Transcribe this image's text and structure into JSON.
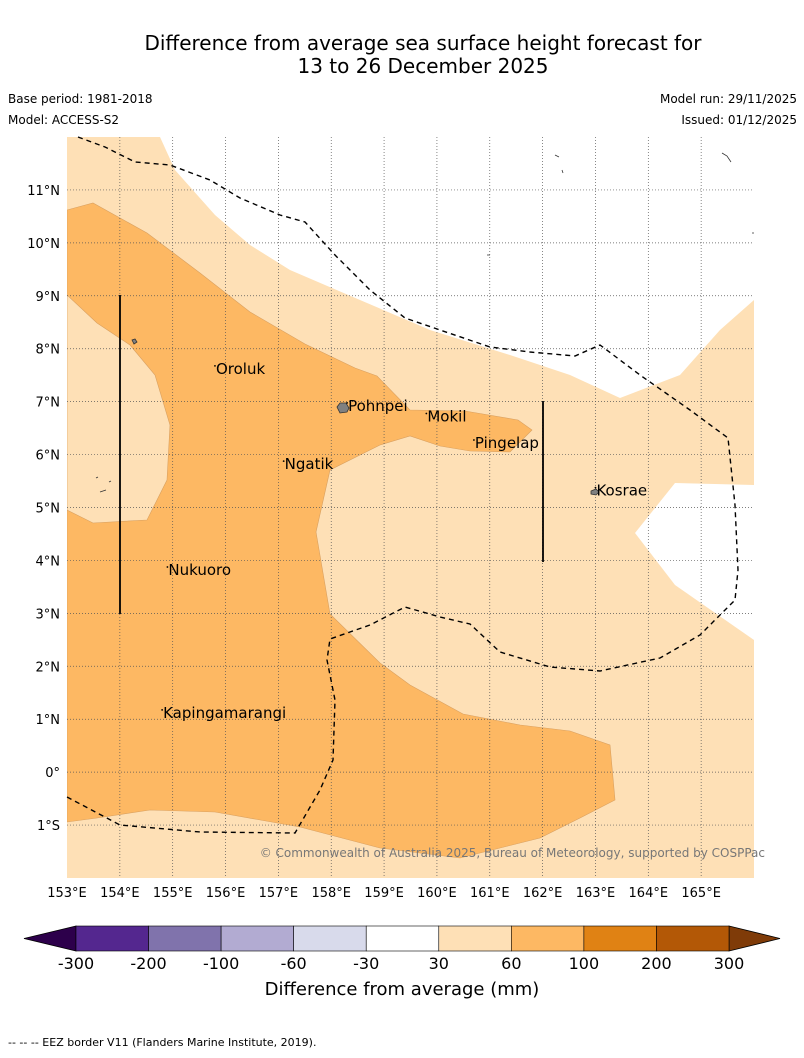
{
  "title": {
    "line1": "Difference from average sea surface height forecast for",
    "line2": "13 to 26 December 2025"
  },
  "meta": {
    "base_period": "Base period: 1981-2018",
    "model": "Model: ACCESS-S2",
    "model_run": "Model run: 29/11/2025",
    "issued": "Issued: 01/12/2025"
  },
  "map": {
    "lon_range": [
      153,
      166
    ],
    "lat_range": [
      -2,
      12
    ],
    "lon_labels": [
      "153°E",
      "154°E",
      "155°E",
      "156°E",
      "157°E",
      "158°E",
      "159°E",
      "160°E",
      "161°E",
      "162°E",
      "163°E",
      "164°E",
      "165°E"
    ],
    "lon_values": [
      153,
      154,
      155,
      156,
      157,
      158,
      159,
      160,
      161,
      162,
      163,
      164,
      165
    ],
    "lat_labels": [
      "1°S",
      "0°",
      "1°N",
      "2°N",
      "3°N",
      "4°N",
      "5°N",
      "6°N",
      "7°N",
      "8°N",
      "9°N",
      "10°N",
      "11°N"
    ],
    "lat_values": [
      -1,
      0,
      1,
      2,
      3,
      4,
      5,
      6,
      7,
      8,
      9,
      10,
      11
    ],
    "gridlines": true,
    "places": [
      {
        "name": "Oroluk",
        "lon": 155.8,
        "lat": 7.6
      },
      {
        "name": "Pohnpei",
        "lon": 158.3,
        "lat": 6.9
      },
      {
        "name": "Mokil",
        "lon": 159.8,
        "lat": 6.7
      },
      {
        "name": "Pingelap",
        "lon": 160.7,
        "lat": 6.2
      },
      {
        "name": "Ngatik",
        "lon": 157.1,
        "lat": 5.8
      },
      {
        "name": "Kosrae",
        "lon": 163.0,
        "lat": 5.3
      },
      {
        "name": "Nukuoro",
        "lon": 154.9,
        "lat": 3.8
      },
      {
        "name": "Kapingamarangi",
        "lon": 154.8,
        "lat": 1.1
      }
    ],
    "copyright": "© Commonwealth of Australia 2025, Bureau of Meteorology, supported by COSPPac"
  },
  "colorbar": {
    "ticks": [
      "-300",
      "-200",
      "-100",
      "-60",
      "-30",
      "30",
      "60",
      "100",
      "200",
      "300"
    ],
    "colors": [
      "#54278f",
      "#8073ac",
      "#b2abd2",
      "#d8daeb",
      "#ffffff",
      "#fee0b6",
      "#fdb863",
      "#e08214",
      "#b35806"
    ],
    "under_color": "#2d004b",
    "over_color": "#7f3b08",
    "label": "Difference from average (mm)"
  },
  "footnote": "--  --  -- EEZ border V11 (Flanders Marine Institute, 2019)."
}
